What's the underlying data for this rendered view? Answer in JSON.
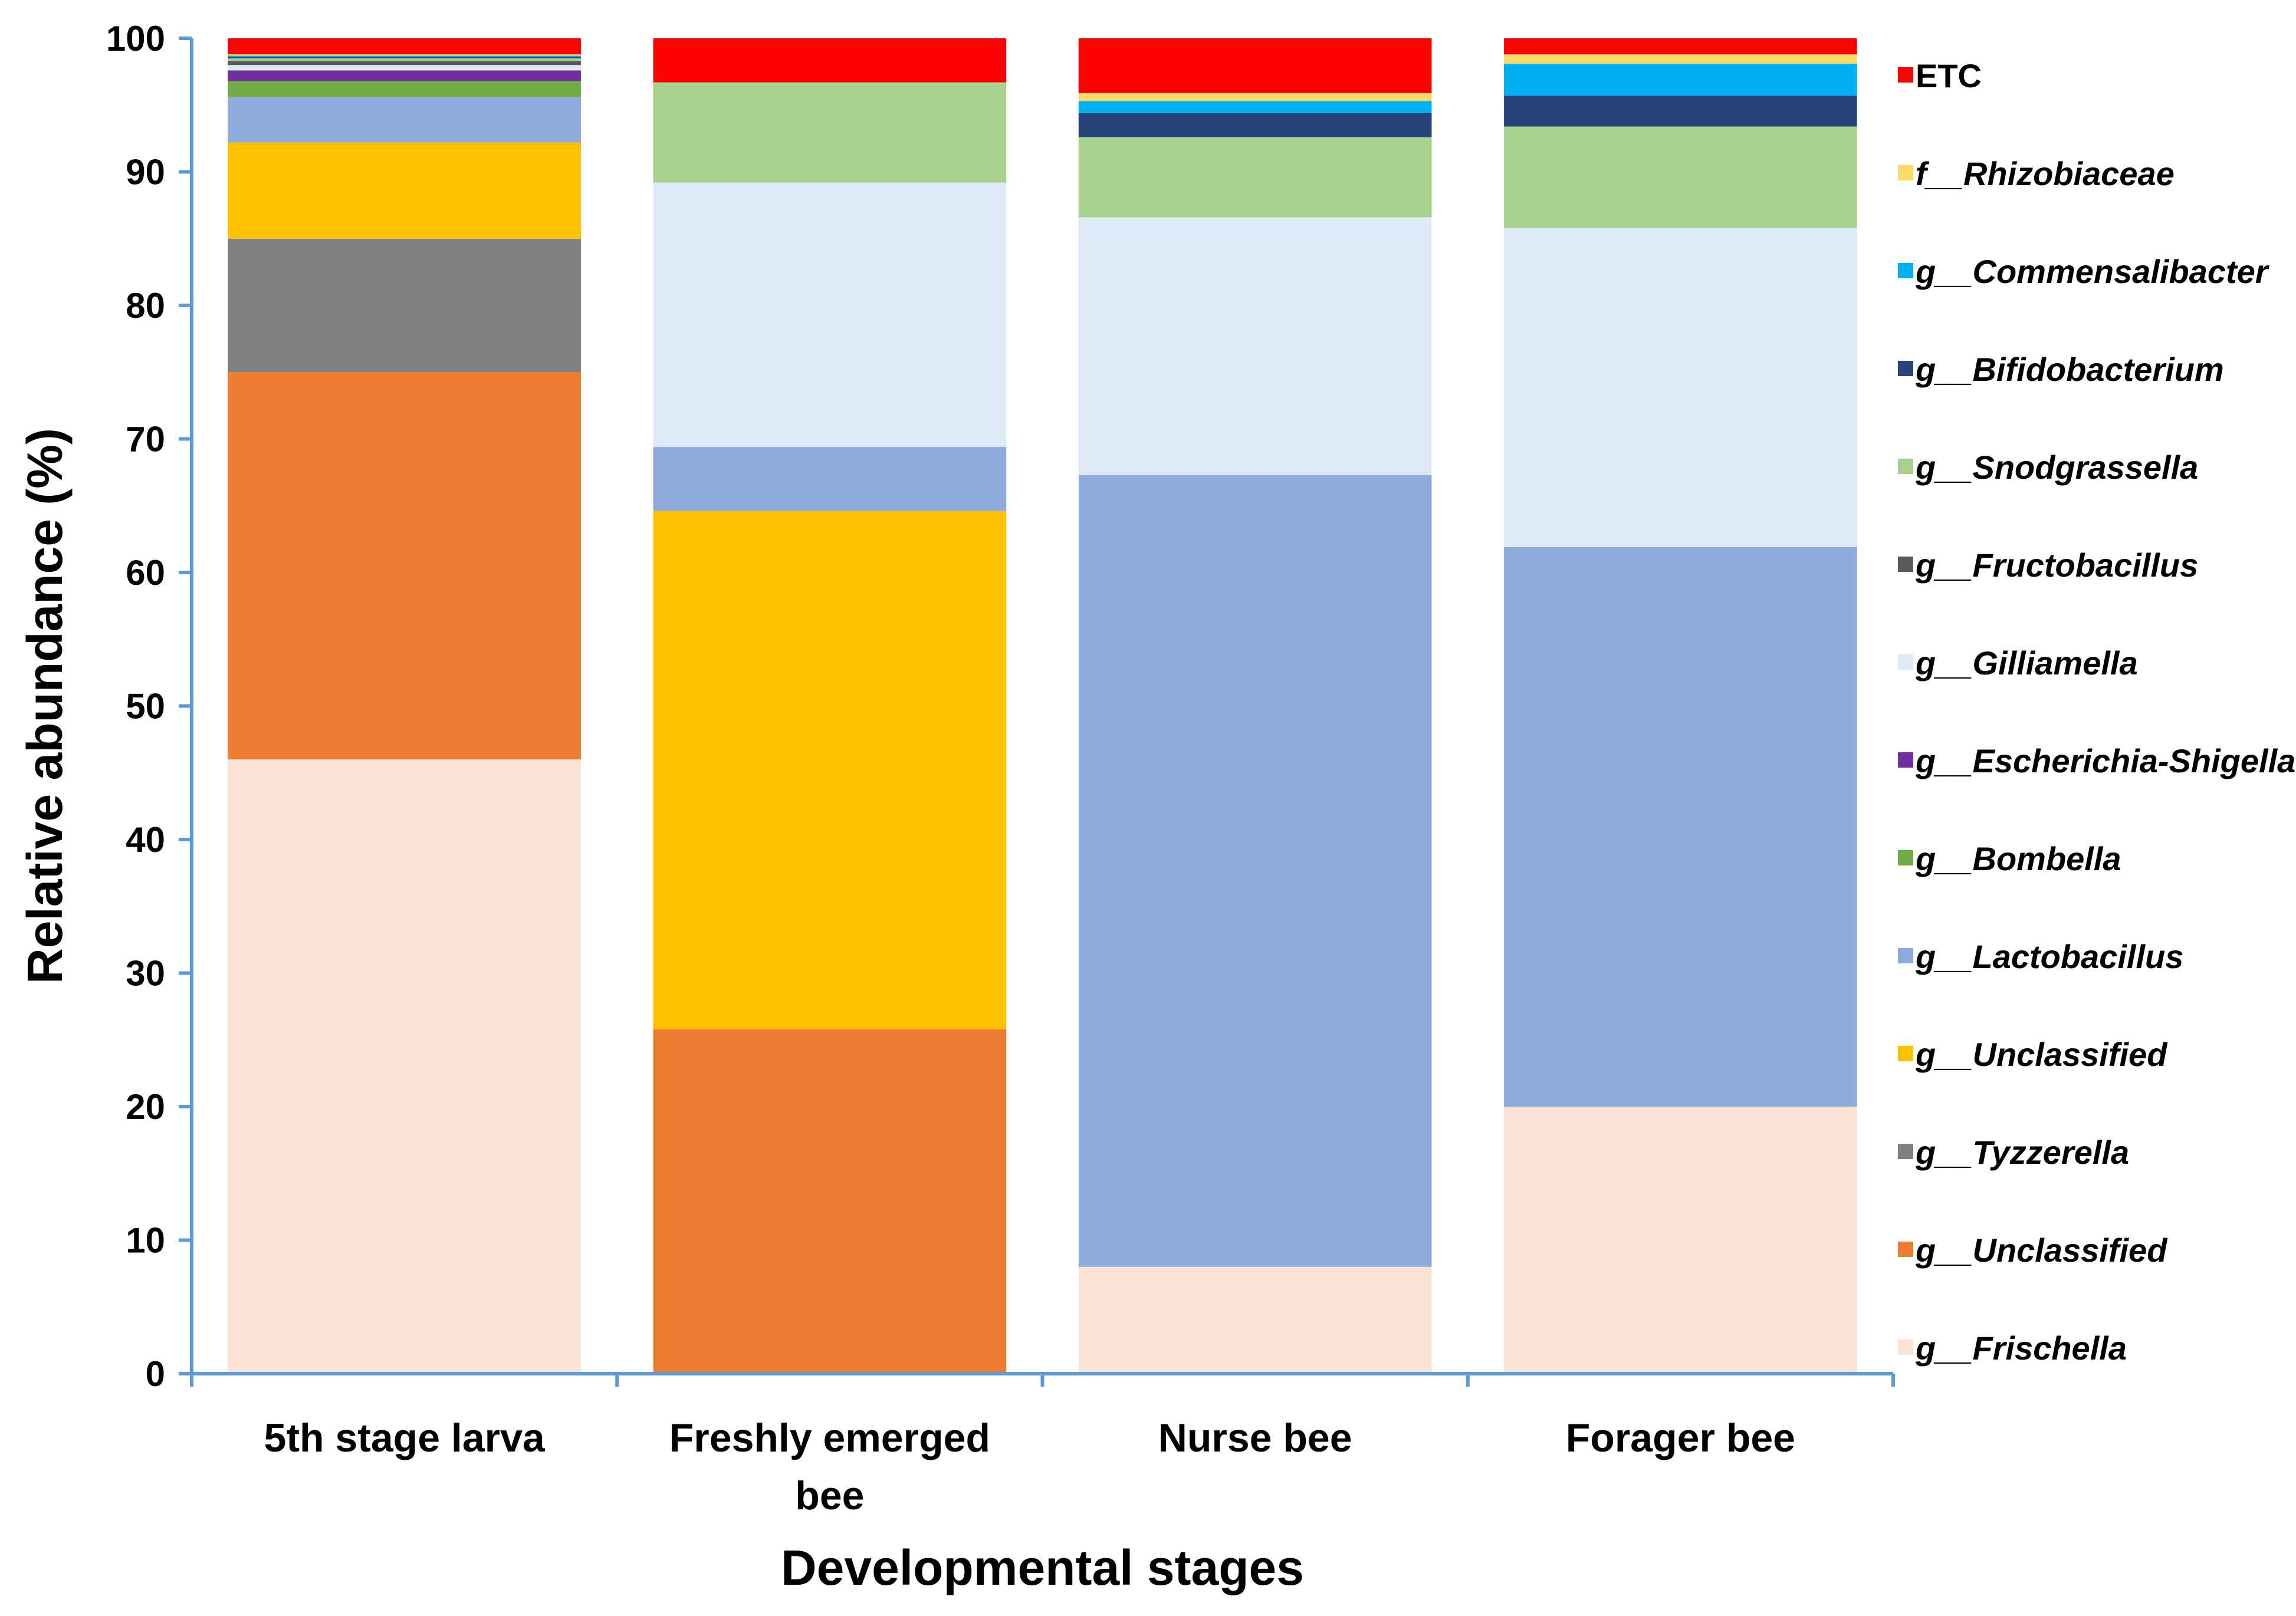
{
  "chart_data": {
    "type": "bar",
    "stacked": true,
    "title": "",
    "xlabel": "Developmental stages",
    "ylabel": "Relative abundance (%)",
    "ylim": [
      0,
      100
    ],
    "yticks": [
      0,
      10,
      20,
      30,
      40,
      50,
      60,
      70,
      80,
      90,
      100
    ],
    "categories": [
      [
        "5th stage larva"
      ],
      [
        "Freshly emerged",
        "bee"
      ],
      [
        "Nurse bee"
      ],
      [
        "Forager bee"
      ]
    ],
    "legend_position": "right",
    "series": [
      {
        "name": "g__Frischella",
        "prefix": "g__",
        "taxon": "Frischella",
        "color": "#FBE3D6",
        "values": [
          46.0,
          0.0,
          8.0,
          20.0
        ]
      },
      {
        "name": "g__Unclassified",
        "prefix": "g__",
        "taxon": "Unclassified",
        "color": "#ED7D31",
        "values": [
          29.0,
          25.8,
          0.0,
          0.0
        ]
      },
      {
        "name": "g__Tyzzerella",
        "prefix": "g__",
        "taxon": "Tyzzerella",
        "color": "#808080",
        "values": [
          10.0,
          0.0,
          0.0,
          0.0
        ]
      },
      {
        "name": "g__Unclassified",
        "prefix": "g__",
        "taxon": "Unclassified",
        "color": "#FFC000",
        "values": [
          7.2,
          38.8,
          0.0,
          0.0
        ]
      },
      {
        "name": "g__Lactobacillus",
        "prefix": "g__",
        "taxon": "Lactobacillus",
        "color": "#8FAADC",
        "values": [
          3.4,
          4.8,
          59.3,
          41.9
        ]
      },
      {
        "name": "g__Bombella",
        "prefix": "g__",
        "taxon": "Bombella",
        "color": "#70AD47",
        "values": [
          1.2,
          0.0,
          0.0,
          0.0
        ]
      },
      {
        "name": "g__Escherichia-Shigella",
        "prefix": "g__",
        "taxon": "Escherichia-Shigella",
        "color": "#7030A0",
        "values": [
          0.8,
          0.0,
          0.0,
          0.0
        ]
      },
      {
        "name": "g__Gilliamella",
        "prefix": "g__",
        "taxon": "Gilliamella",
        "color": "#DEEBF7",
        "values": [
          0.4,
          19.8,
          19.3,
          23.9
        ]
      },
      {
        "name": "g__Fructobacillus",
        "prefix": "g__",
        "taxon": "Fructobacillus",
        "color": "#595959",
        "values": [
          0.3,
          0.0,
          0.0,
          0.0
        ]
      },
      {
        "name": "g__Snodgrassella",
        "prefix": "g__",
        "taxon": "Snodgrassella",
        "color": "#A9D18E",
        "values": [
          0.2,
          7.5,
          6.0,
          7.6
        ]
      },
      {
        "name": "g__Bifidobacterium",
        "prefix": "g__",
        "taxon": "Bifidobacterium",
        "color": "#264478",
        "values": [
          0.1,
          0.0,
          1.8,
          2.3
        ]
      },
      {
        "name": "g__Commensalibacter",
        "prefix": "g__",
        "taxon": "Commensalibacter",
        "color": "#00B0F0",
        "values": [
          0.1,
          0.0,
          0.9,
          2.4
        ]
      },
      {
        "name": "f__Rhizobiaceae",
        "prefix": "f__",
        "taxon": "Rhizobiaceae",
        "color": "#FFD966",
        "values": [
          0.1,
          0.0,
          0.6,
          0.7
        ]
      },
      {
        "name": "ETC",
        "prefix": "",
        "taxon": "ETC",
        "color": "#FF0000",
        "values": [
          1.2,
          3.3,
          4.1,
          1.2
        ]
      }
    ]
  }
}
